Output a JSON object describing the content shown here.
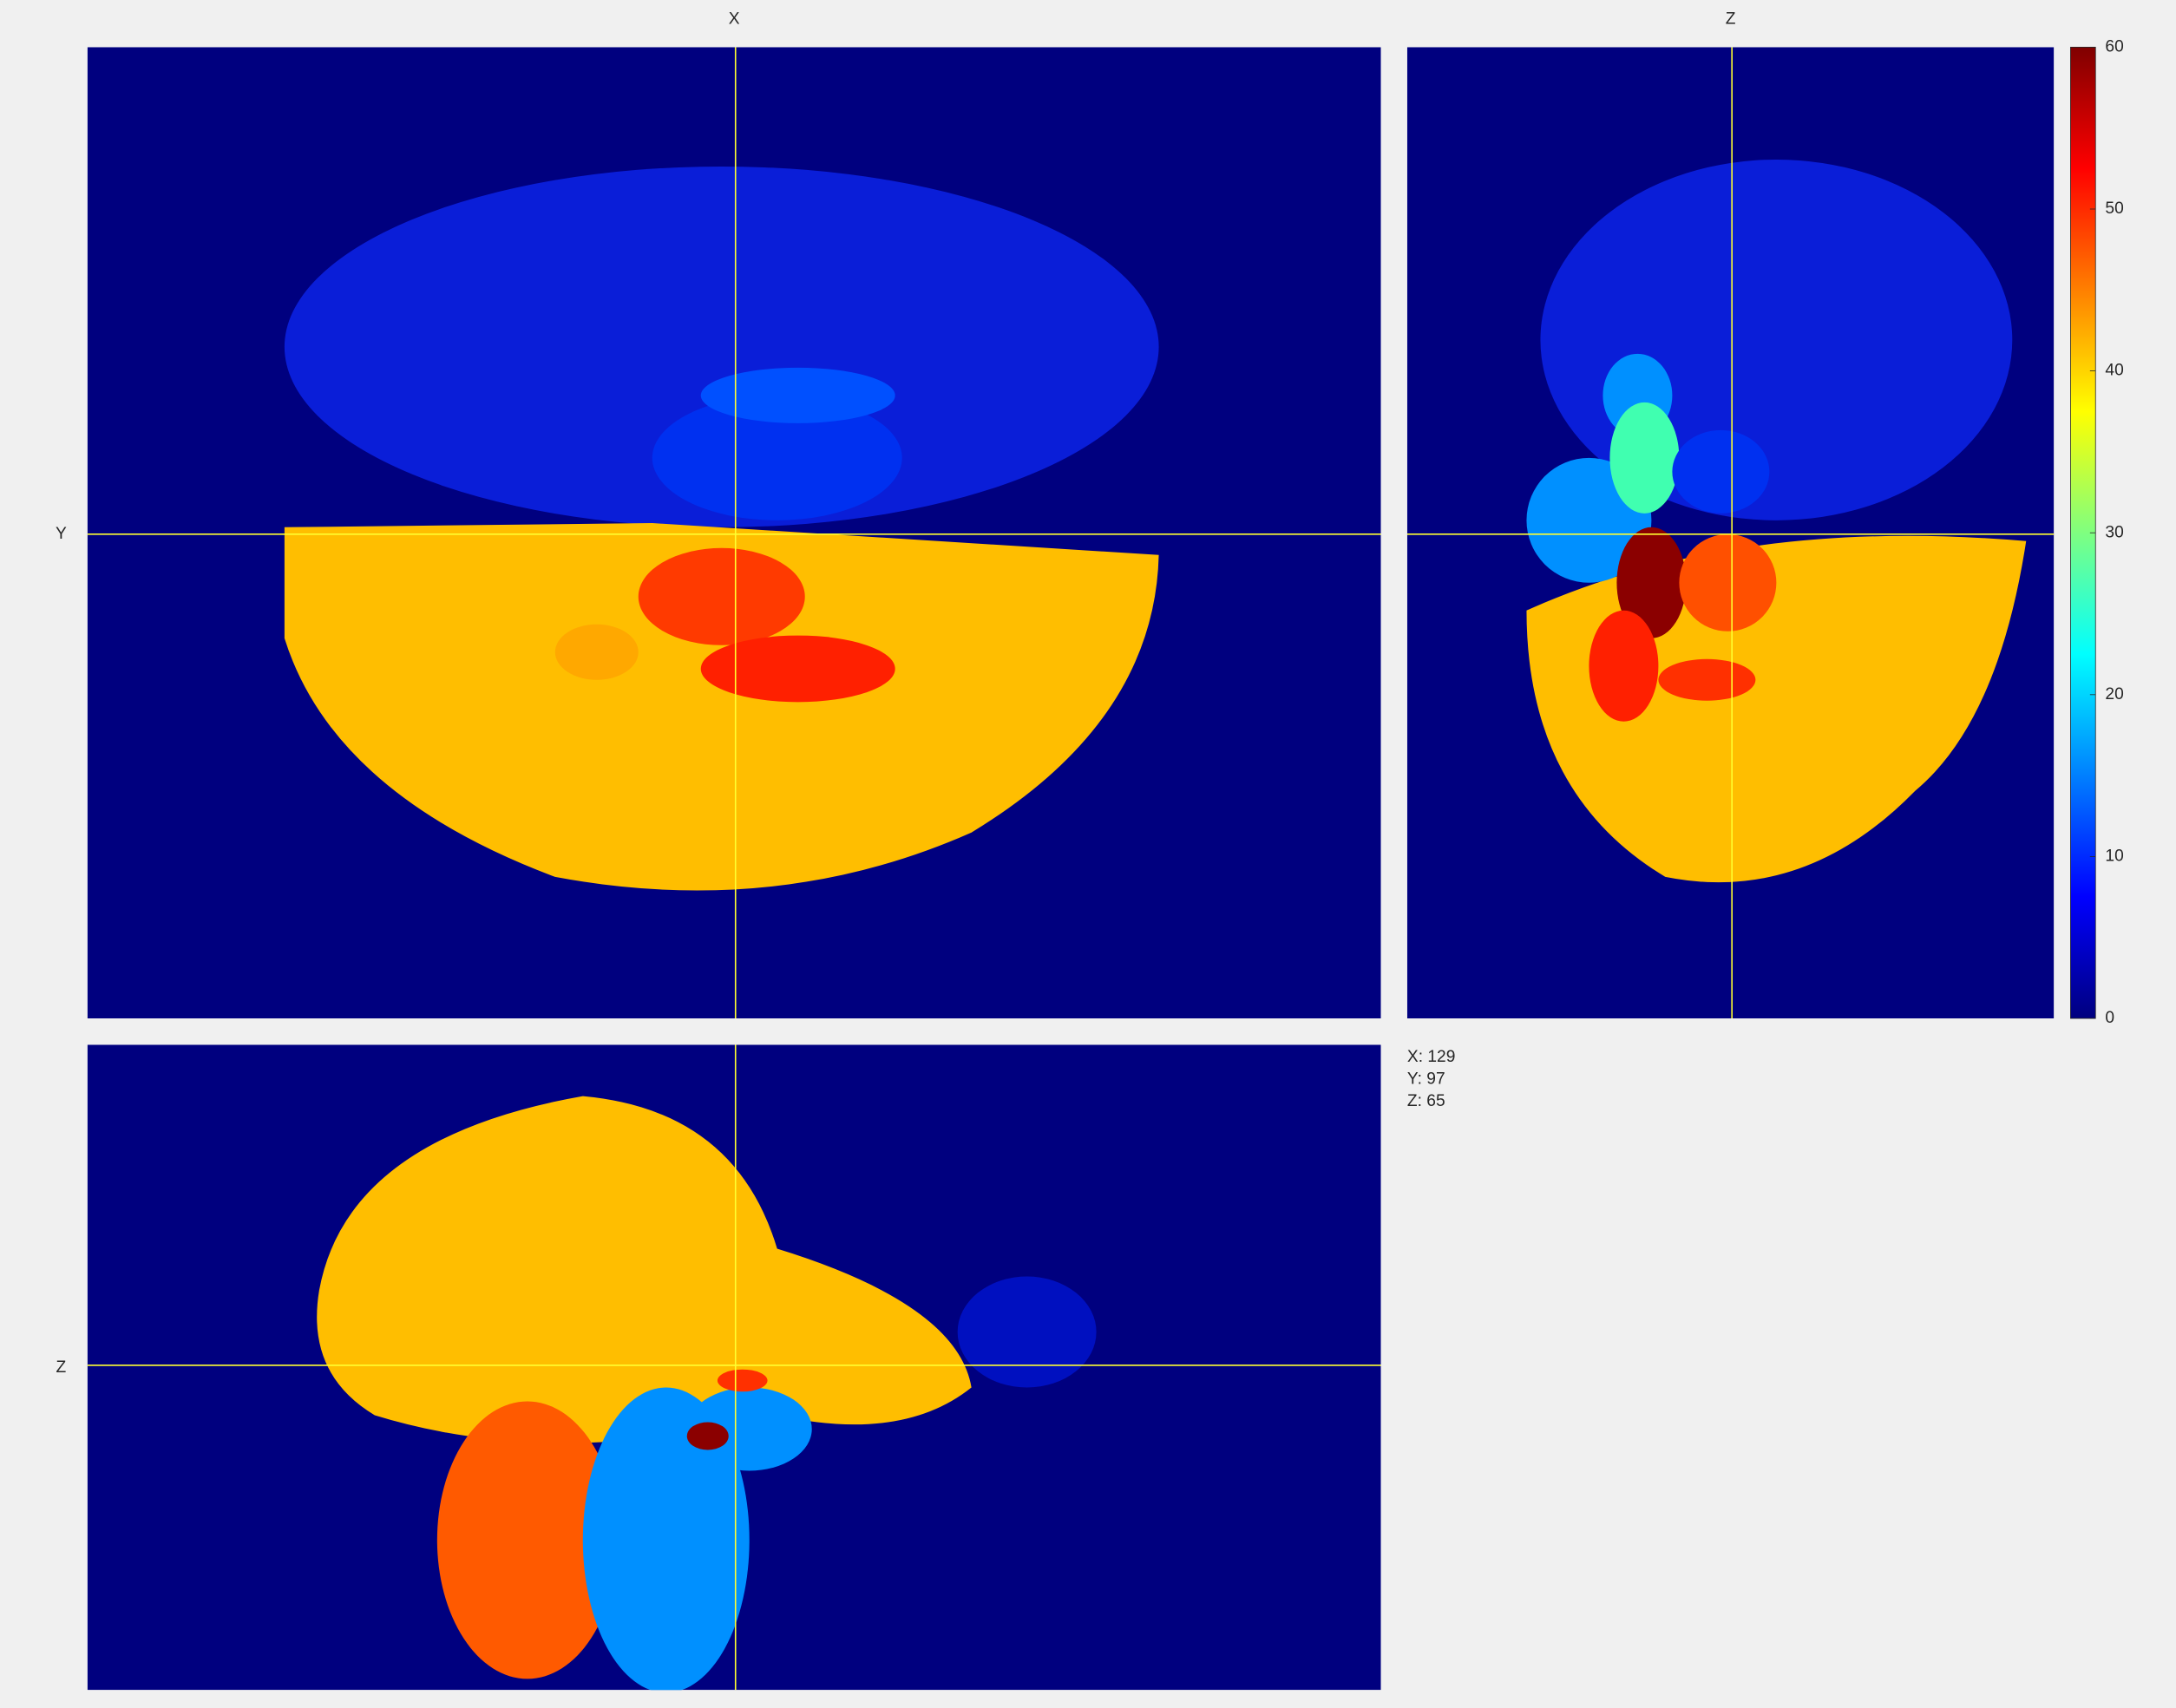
{
  "views": {
    "top_left_label": "X",
    "top_right_label": "Z",
    "left_upper_label": "Y",
    "left_lower_label": "Z"
  },
  "colorbar": {
    "lim": [
      0,
      60
    ],
    "ticks": [
      0,
      10,
      20,
      30,
      40,
      50,
      60
    ]
  },
  "readout": [
    "X: 129",
    "Y: 97",
    "Z: 65"
  ]
}
